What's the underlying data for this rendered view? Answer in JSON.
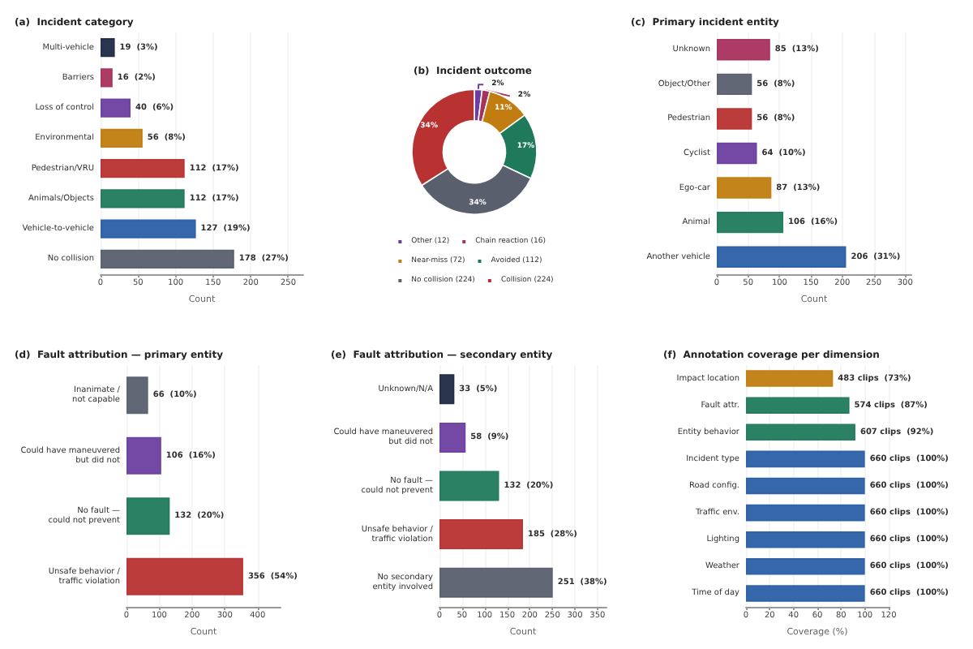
{
  "chart_data": [
    {
      "type": "bar",
      "title": "(a)  Incident category",
      "xlabel": "Count",
      "orientation": "horizontal",
      "grid": "x",
      "categories": [
        "Multi-vehicle",
        "Barriers",
        "Loss of control",
        "Environmental",
        "Pedestrian/VRU",
        "Animals/Objects",
        "Vehicle-to-vehicle",
        "No collision"
      ],
      "values": [
        19,
        16,
        40,
        56,
        112,
        112,
        127,
        178
      ],
      "colors": [
        "#1f2a44",
        "#a8325e",
        "#6b3fa0",
        "#c17d10",
        "#b83232",
        "#1f7a5c",
        "#2a5fa5",
        "#5a5f6e"
      ],
      "value_labels": [
        "19  (3%)",
        "16  (2%)",
        "40  (6%)",
        "56  (8%)",
        "112  (17%)",
        "112  (17%)",
        "127  (19%)",
        "178  (27%)"
      ],
      "xlim": [
        0,
        270
      ],
      "xticks": [
        0,
        50,
        100,
        150,
        200,
        250
      ]
    },
    {
      "type": "donut",
      "title": "(b)  Incident outcome",
      "legend": "bottom",
      "categories": [
        "Other (12)",
        "Chain reaction (16)",
        "Near-miss (72)",
        "Avoided (112)",
        "No collision (224)",
        "Collision (224)"
      ],
      "values": [
        2,
        2,
        11,
        17,
        34,
        34
      ],
      "colors": [
        "#6b3fa0",
        "#a8325e",
        "#c17d10",
        "#1f7a5c",
        "#5a5f6e",
        "#b83232"
      ],
      "value_labels": [
        "2%",
        "2%",
        "11%",
        "17%",
        "34%",
        "34%"
      ]
    },
    {
      "type": "bar",
      "title": "(c)  Primary incident entity",
      "xlabel": "Count",
      "orientation": "horizontal",
      "grid": "x",
      "categories": [
        "Unknown",
        "Object/Other",
        "Pedestrian",
        "Cyclist",
        "Ego-car",
        "Animal",
        "Another vehicle"
      ],
      "values": [
        85,
        56,
        56,
        64,
        87,
        106,
        206
      ],
      "colors": [
        "#a8325e",
        "#5a5f6e",
        "#b83232",
        "#6b3fa0",
        "#c17d10",
        "#1f7a5c",
        "#2a5fa5"
      ],
      "value_labels": [
        "85  (13%)",
        "56  (8%)",
        "56  (8%)",
        "64  (10%)",
        "87  (13%)",
        "106  (16%)",
        "206  (31%)"
      ],
      "xlim": [
        0,
        310
      ],
      "xticks": [
        0,
        50,
        100,
        150,
        200,
        250,
        300
      ]
    },
    {
      "type": "bar",
      "title": "(d)  Fault attribution — primary entity",
      "xlabel": "Count",
      "orientation": "horizontal",
      "grid": "x",
      "categories": [
        "Inanimate /\nnot capable",
        "Could have maneuvered\nbut did not",
        "No fault —\ncould not prevent",
        "Unsafe behavior /\ntraffic violation"
      ],
      "values": [
        66,
        106,
        132,
        356
      ],
      "colors": [
        "#5a5f6e",
        "#6b3fa0",
        "#1f7a5c",
        "#b83232"
      ],
      "value_labels": [
        "66  (10%)",
        "106  (16%)",
        "132  (20%)",
        "356  (54%)"
      ],
      "xlim": [
        0,
        470
      ],
      "xticks": [
        0,
        100,
        200,
        300,
        400
      ]
    },
    {
      "type": "bar",
      "title": "(e)  Fault attribution — secondary entity",
      "xlabel": "Count",
      "orientation": "horizontal",
      "grid": "x",
      "categories": [
        "Unknown/N/A",
        "Could have maneuvered\nbut did not",
        "No fault —\ncould not prevent",
        "Unsafe behavior /\ntraffic violation",
        "No secondary\nentity involved"
      ],
      "values": [
        33,
        58,
        132,
        185,
        251
      ],
      "colors": [
        "#1f2a44",
        "#6b3fa0",
        "#1f7a5c",
        "#b83232",
        "#5a5f6e"
      ],
      "value_labels": [
        "33  (5%)",
        "58  (9%)",
        "132  (20%)",
        "185  (28%)",
        "251  (38%)"
      ],
      "xlim": [
        0,
        370
      ],
      "xticks": [
        0,
        50,
        100,
        150,
        200,
        250,
        300,
        350
      ]
    },
    {
      "type": "bar",
      "title": "(f)  Annotation coverage per dimension",
      "xlabel": "Coverage (%)",
      "orientation": "horizontal",
      "grid": "x",
      "categories": [
        "Impact location",
        "Fault attr.",
        "Entity behavior",
        "Incident type",
        "Road config.",
        "Traffic env.",
        "Lighting",
        "Weather",
        "Time of day"
      ],
      "values": [
        73.2,
        87,
        92,
        100,
        100,
        100,
        100,
        100,
        100
      ],
      "colors": [
        "#c17d10",
        "#1f7a5c",
        "#1f7a5c",
        "#2a5fa5",
        "#2a5fa5",
        "#2a5fa5",
        "#2a5fa5",
        "#2a5fa5",
        "#2a5fa5"
      ],
      "value_labels": [
        "483 clips  (73%)",
        "574 clips  (87%)",
        "607 clips  (92%)",
        "660 clips  (100%)",
        "660 clips  (100%)",
        "660 clips  (100%)",
        "660 clips  (100%)",
        "660 clips  (100%)",
        "660 clips  (100%)"
      ],
      "xlim": [
        0,
        120
      ],
      "xticks": [
        0,
        20,
        40,
        60,
        80,
        100,
        120
      ]
    }
  ]
}
